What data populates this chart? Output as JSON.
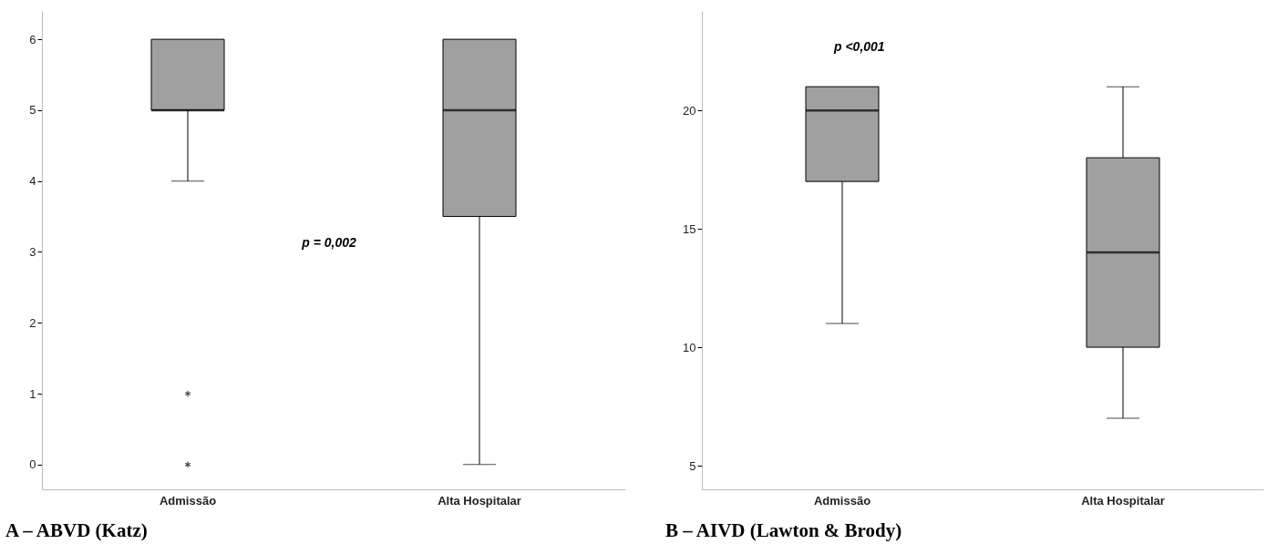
{
  "chart_data": [
    {
      "type": "box",
      "title": "A – ABVD (Katz)",
      "categories": [
        "Admissão",
        "Alta Hospitalar"
      ],
      "ylim": [
        -0.35,
        6.4
      ],
      "yticks": [
        0,
        1,
        2,
        3,
        4,
        5,
        6
      ],
      "grid": false,
      "series": [
        {
          "color": "#a0a0a0",
          "boxes": [
            {
              "low": 4,
              "q1": 5,
              "median": 5,
              "q3": 6,
              "high": 6,
              "outliers": [
                1,
                0
              ]
            },
            {
              "low": 0,
              "q1": 3.5,
              "median": 5,
              "q3": 6,
              "high": 6
            }
          ]
        }
      ],
      "annotations": [
        "p = 0,002"
      ]
    },
    {
      "type": "box",
      "title": "B – AIVD (Lawton & Brody)",
      "categories": [
        "Admissão",
        "Alta Hospitalar"
      ],
      "ylim": [
        4,
        24.2
      ],
      "yticks": [
        5,
        10,
        15,
        20
      ],
      "grid": false,
      "series": [
        {
          "color": "#a0a0a0",
          "boxes": [
            {
              "low": 11,
              "q1": 17,
              "median": 20,
              "q3": 21,
              "high": 21
            },
            {
              "low": 7,
              "q1": 10,
              "median": 14,
              "q3": 18,
              "high": 21
            }
          ]
        }
      ],
      "annotations": [
        "p <0,001"
      ]
    }
  ]
}
